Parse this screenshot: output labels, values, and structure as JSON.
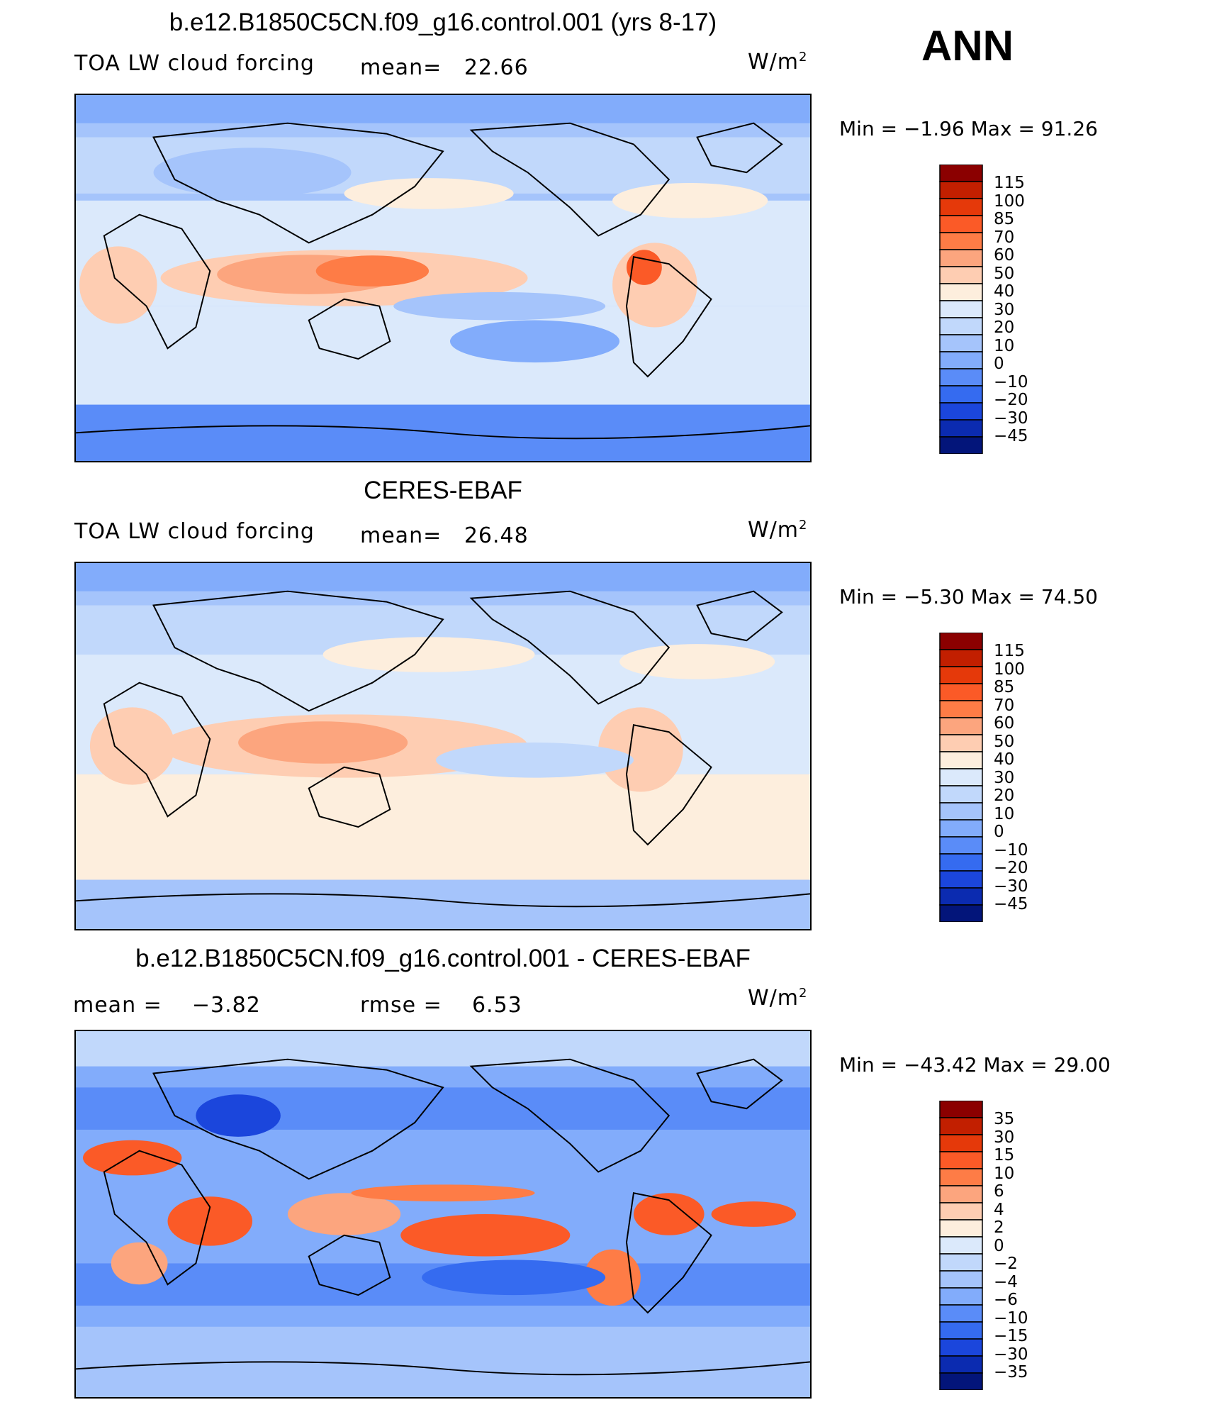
{
  "season": "ANN",
  "units_base": "W/m",
  "units_exp": "2",
  "panels": [
    {
      "title": "b.e12.B1850C5CN.f09_g16.control.001 (yrs 8-17)",
      "left_label": "TOA LW cloud forcing",
      "stat_label": "mean=",
      "stat_value": "22.66",
      "minmax": "Min =   −1.96 Max =   91.26",
      "colorbar_labels": [
        "115",
        "100",
        "85",
        "70",
        "60",
        "50",
        "40",
        "30",
        "20",
        "10",
        "0",
        "−10",
        "−20",
        "−30",
        "−45"
      ],
      "colorbar_colors": [
        "#8b0000",
        "#c21f00",
        "#e5390a",
        "#fb5a27",
        "#fe7c46",
        "#fca57e",
        "#fecdb2",
        "#fdeedd",
        "#dbe9fb",
        "#c1d8fb",
        "#a5c4fb",
        "#82acfb",
        "#5a8cf8",
        "#356bf0",
        "#1b46dc",
        "#0b2bb0",
        "#03157a"
      ]
    },
    {
      "title": "CERES-EBAF",
      "left_label": "TOA LW cloud forcing",
      "stat_label": "mean=",
      "stat_value": "26.48",
      "minmax": "Min =   −5.30 Max =   74.50",
      "colorbar_labels": [
        "115",
        "100",
        "85",
        "70",
        "60",
        "50",
        "40",
        "30",
        "20",
        "10",
        "0",
        "−10",
        "−20",
        "−30",
        "−45"
      ],
      "colorbar_colors": [
        "#8b0000",
        "#c21f00",
        "#e5390a",
        "#fb5a27",
        "#fe7c46",
        "#fca57e",
        "#fecdb2",
        "#fdeedd",
        "#dbe9fb",
        "#c1d8fb",
        "#a5c4fb",
        "#82acfb",
        "#5a8cf8",
        "#356bf0",
        "#1b46dc",
        "#0b2bb0",
        "#03157a"
      ]
    },
    {
      "title": "b.e12.B1850C5CN.f09_g16.control.001 - CERES-EBAF",
      "left_label": "mean =",
      "left_value": "−3.82",
      "stat_label": "rmse =",
      "stat_value": "6.53",
      "minmax": "Min = −43.42 Max =   29.00",
      "colorbar_labels": [
        "35",
        "30",
        "15",
        "10",
        "6",
        "4",
        "2",
        "0",
        "−2",
        "−4",
        "−6",
        "−10",
        "−15",
        "−30",
        "−35"
      ],
      "colorbar_colors": [
        "#8b0000",
        "#c21f00",
        "#e5390a",
        "#fb5a27",
        "#fe7c46",
        "#fca57e",
        "#fecdb2",
        "#fdeedd",
        "#dbe9fb",
        "#c1d8fb",
        "#a5c4fb",
        "#82acfb",
        "#5a8cf8",
        "#356bf0",
        "#1b46dc",
        "#0b2bb0",
        "#03157a"
      ]
    }
  ]
}
